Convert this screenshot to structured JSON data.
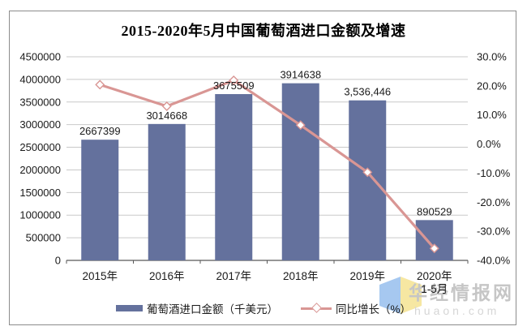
{
  "chart_data": {
    "type": "bar",
    "title": "2015-2020年5月中国葡萄酒进口金额及增速",
    "categories": [
      "2015年",
      "2016年",
      "2017年",
      "2018年",
      "2019年",
      "2020年"
    ],
    "category_sub_labels": [
      "",
      "",
      "",
      "",
      "",
      "1-5月"
    ],
    "series": [
      {
        "name": "葡萄酒进口金额（千美元）",
        "chart_type": "bar",
        "axis": "left",
        "color": "#64719D",
        "values": [
          2667399,
          3014668,
          3675509,
          3914638,
          3536446,
          890529
        ],
        "data_labels": [
          "2667399",
          "3014668",
          "3675509",
          "3914638",
          "3,536,446",
          "890529"
        ]
      },
      {
        "name": "同比增长（%）",
        "chart_type": "line",
        "axis": "right",
        "color": "#D99694",
        "marker": "diamond-white",
        "values": [
          20.4,
          13.0,
          21.9,
          6.5,
          -9.7,
          -35.9
        ]
      }
    ],
    "left_axis": {
      "min": 0,
      "max": 4500000,
      "step": 500000
    },
    "right_axis": {
      "min": -40,
      "max": 30,
      "step": 10,
      "suffix": "%"
    },
    "grid": true,
    "legend_position": "bottom"
  },
  "legend": [
    {
      "label": "葡萄酒进口金额（千美元）",
      "swatch": "bar",
      "color": "#64719D"
    },
    {
      "label": "同比增长（%）",
      "swatch": "line-diamond",
      "color": "#D99694"
    }
  ],
  "watermark": {
    "site_name": "华经情报网",
    "site_url": "huaon.com",
    "logo_blue": "#A6C8F0",
    "logo_yellow": "#F6E7A2"
  }
}
